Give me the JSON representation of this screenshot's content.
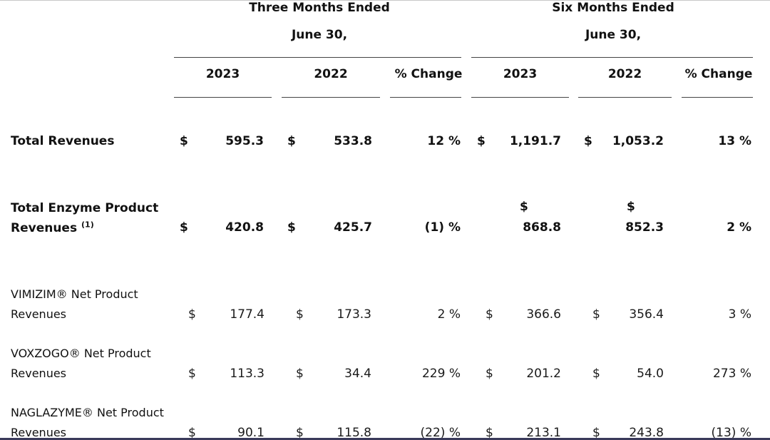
{
  "header": {
    "three_months_line1": "Three Months Ended",
    "three_months_line2": "June 30,",
    "six_months_line1": "Six Months Ended",
    "six_months_line2": "June 30,",
    "columns": [
      "2023",
      "2022",
      "% Change",
      "2023",
      "2022",
      "% Change"
    ]
  },
  "rows": [
    {
      "label_line1": "Total Revenues",
      "label_line2": "",
      "superscript": "",
      "cells": {
        "q_cur_sym": "$",
        "q_cur": "595.3",
        "q_prev_sym": "$",
        "q_prev": "533.8",
        "q_pct": "12 %",
        "s_cur_sym": "$",
        "s_cur": "1,191.7",
        "s_prev_sym": "$",
        "s_prev": "1,053.2",
        "s_pct": "13 %"
      }
    },
    {
      "label_line1": "Total Enzyme Product",
      "label_line2": "Revenues",
      "superscript": "(1)",
      "cells": {
        "q_cur_sym": "$",
        "q_cur": "420.8",
        "q_prev_sym": "$",
        "q_prev": "425.7",
        "q_pct": "(1) %",
        "s_cur_sym": "$",
        "s_cur": "868.8",
        "s_prev_sym": "$",
        "s_prev": "852.3",
        "s_pct": "2 %"
      }
    },
    {
      "label_line1": "VIMIZIM® Net Product",
      "label_line2": "Revenues",
      "superscript": "",
      "cells": {
        "q_cur_sym": "$",
        "q_cur": "177.4",
        "q_prev_sym": "$",
        "q_prev": "173.3",
        "q_pct": "2 %",
        "s_cur_sym": "$",
        "s_cur": "366.6",
        "s_prev_sym": "$",
        "s_prev": "356.4",
        "s_pct": "3 %"
      }
    },
    {
      "label_line1": "VOXZOGO® Net Product",
      "label_line2": "Revenues",
      "superscript": "",
      "cells": {
        "q_cur_sym": "$",
        "q_cur": "113.3",
        "q_prev_sym": "$",
        "q_prev": "34.4",
        "q_pct": "229 %",
        "s_cur_sym": "$",
        "s_cur": "201.2",
        "s_prev_sym": "$",
        "s_prev": "54.0",
        "s_pct": "273 %"
      }
    },
    {
      "label_line1": "NAGLAZYME® Net Product",
      "label_line2": "Revenues",
      "superscript": "",
      "cells": {
        "q_cur_sym": "$",
        "q_cur": "90.1",
        "q_prev_sym": "$",
        "q_prev": "115.8",
        "q_pct": "(22) %",
        "s_cur_sym": "$",
        "s_cur": "213.1",
        "s_prev_sym": "$",
        "s_prev": "243.8",
        "s_pct": "(13) %"
      }
    }
  ]
}
